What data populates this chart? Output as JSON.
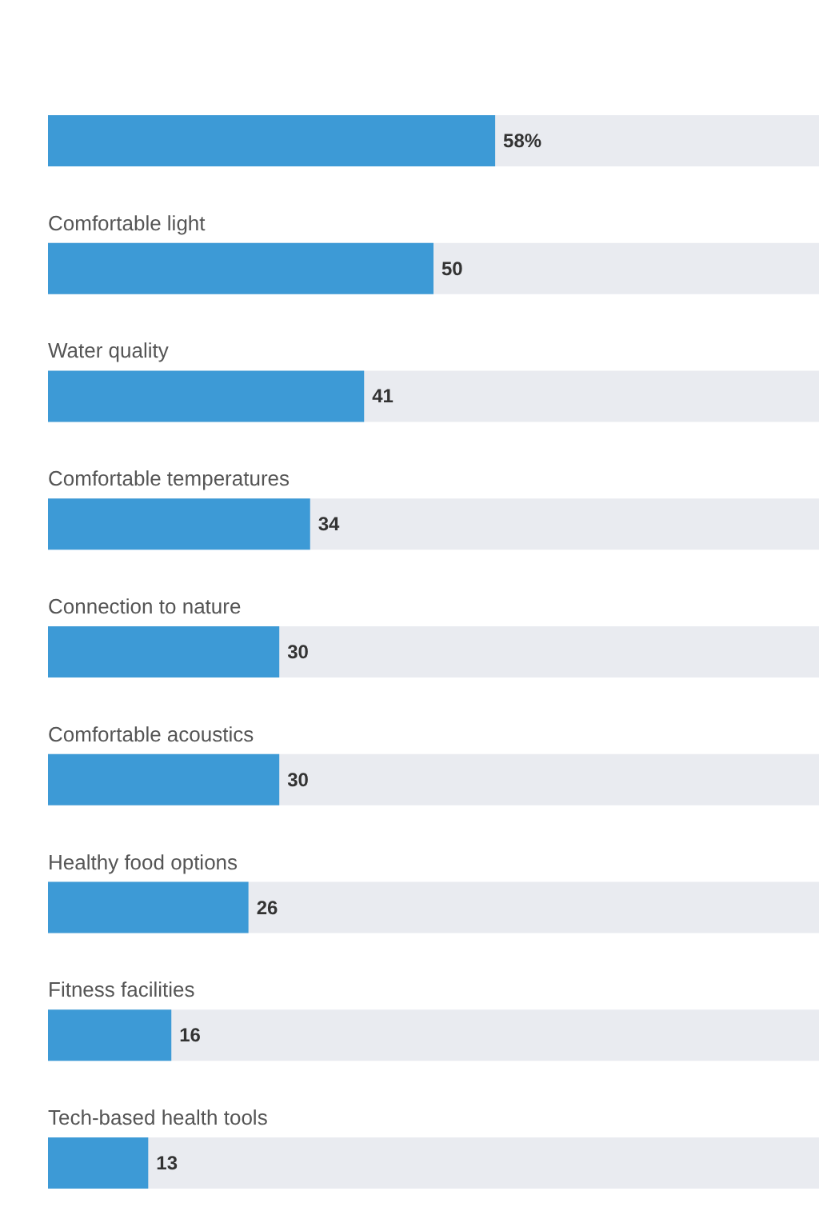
{
  "chart_data": {
    "type": "bar",
    "orientation": "horizontal",
    "categories": [
      null,
      "Comfortable light",
      "Water quality",
      "Comfortable temperatures",
      "Connection to nature",
      "Comfortable acoustics",
      "Healthy food options",
      "Fitness facilities",
      "Tech-based health tools"
    ],
    "values": [
      58,
      50,
      41,
      34,
      30,
      30,
      26,
      16,
      13
    ],
    "value_labels": [
      "58%",
      "50",
      "41",
      "34",
      "30",
      "30",
      "26",
      "16",
      "13"
    ],
    "color": "#3d9ad6",
    "xlim": [
      0,
      100
    ]
  }
}
